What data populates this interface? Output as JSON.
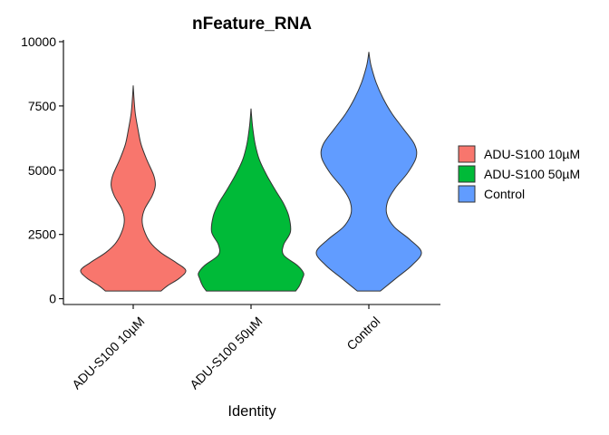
{
  "chart_data": {
    "type": "violin",
    "title": "nFeature_RNA",
    "xlabel": "Identity",
    "ylabel": "",
    "ylim": [
      0,
      10000
    ],
    "yticks": [
      0,
      2500,
      5000,
      7500,
      10000
    ],
    "yticklabels": [
      "0",
      "2500",
      "5000",
      "7500",
      "10000"
    ],
    "categories": [
      "ADU-S100 10µM",
      "ADU-S100 50µM",
      "Control"
    ],
    "legend": {
      "placement": "right",
      "entries": [
        "ADU-S100 10µM",
        "ADU-S100 50µM",
        "Control"
      ]
    },
    "series": [
      {
        "category": "ADU-S100 10µM",
        "color": "#F8766D",
        "min": 300,
        "max": 8300,
        "density": [
          [
            300,
            0.53
          ],
          [
            500,
            0.65
          ],
          [
            800,
            0.88
          ],
          [
            1100,
            1.0
          ],
          [
            1400,
            0.82
          ],
          [
            1800,
            0.52
          ],
          [
            2200,
            0.32
          ],
          [
            2700,
            0.2
          ],
          [
            3100,
            0.17
          ],
          [
            3500,
            0.22
          ],
          [
            4000,
            0.36
          ],
          [
            4400,
            0.42
          ],
          [
            4800,
            0.39
          ],
          [
            5400,
            0.26
          ],
          [
            6000,
            0.15
          ],
          [
            6600,
            0.09
          ],
          [
            7200,
            0.04
          ],
          [
            7800,
            0.015
          ],
          [
            8300,
            0.0
          ]
        ]
      },
      {
        "category": "ADU-S100 50µM",
        "color": "#00BA38",
        "min": 300,
        "max": 7400,
        "density": [
          [
            300,
            0.85
          ],
          [
            500,
            0.92
          ],
          [
            800,
            0.98
          ],
          [
            1000,
            1.0
          ],
          [
            1300,
            0.88
          ],
          [
            1700,
            0.62
          ],
          [
            2100,
            0.62
          ],
          [
            2600,
            0.75
          ],
          [
            3200,
            0.72
          ],
          [
            3700,
            0.62
          ],
          [
            4200,
            0.47
          ],
          [
            4800,
            0.3
          ],
          [
            5400,
            0.16
          ],
          [
            6000,
            0.08
          ],
          [
            6600,
            0.035
          ],
          [
            7000,
            0.015
          ],
          [
            7400,
            0.0
          ]
        ]
      },
      {
        "category": "Control",
        "color": "#619CFF",
        "min": 300,
        "max": 9600,
        "density": [
          [
            300,
            0.22
          ],
          [
            800,
            0.52
          ],
          [
            1300,
            0.82
          ],
          [
            1800,
            1.0
          ],
          [
            2300,
            0.78
          ],
          [
            2800,
            0.48
          ],
          [
            3300,
            0.34
          ],
          [
            3800,
            0.36
          ],
          [
            4300,
            0.5
          ],
          [
            4900,
            0.74
          ],
          [
            5500,
            0.9
          ],
          [
            6000,
            0.87
          ],
          [
            6600,
            0.66
          ],
          [
            7200,
            0.44
          ],
          [
            7800,
            0.27
          ],
          [
            8400,
            0.14
          ],
          [
            9000,
            0.05
          ],
          [
            9300,
            0.02
          ],
          [
            9600,
            0.0
          ]
        ]
      }
    ]
  }
}
